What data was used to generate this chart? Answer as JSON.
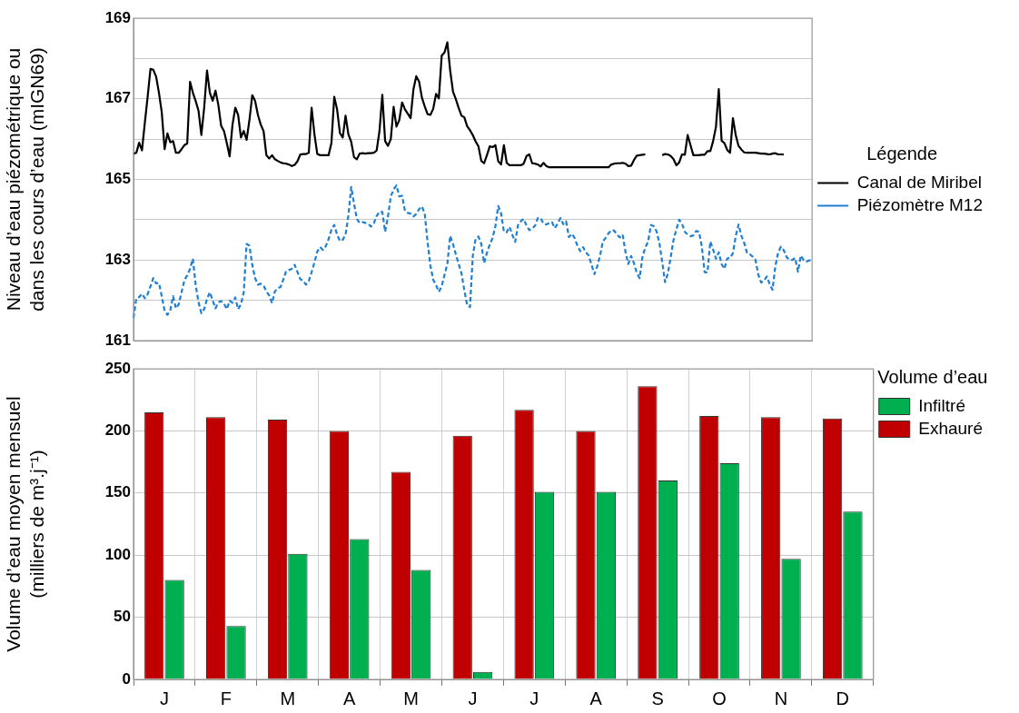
{
  "chart_data": [
    {
      "type": "line",
      "ylabel": "Niveau d’eau piézométrique ou\ndans les cours d’eau (mIGN69)",
      "legend_title": "Légende",
      "legend": "right",
      "grid": "y",
      "marker": "none",
      "tick_labels": "y",
      "categories": [
        null,
        null,
        null,
        null,
        null,
        null,
        null,
        null,
        null,
        null,
        null,
        null,
        null,
        null,
        null,
        null,
        null,
        null,
        null,
        null,
        null,
        null,
        null,
        null,
        null,
        null,
        null,
        null,
        null,
        null,
        null,
        null,
        null,
        null,
        null,
        null,
        null,
        null,
        null,
        null,
        null,
        null,
        null,
        null,
        null,
        null,
        null,
        null,
        null,
        null,
        null,
        null,
        null,
        null,
        null,
        null,
        null,
        null,
        null,
        null,
        null,
        null,
        null,
        null,
        null,
        null,
        null,
        null,
        null,
        null,
        null,
        null,
        null,
        null,
        null,
        null,
        null,
        null,
        null,
        null,
        null,
        null,
        null,
        null,
        null,
        null,
        null,
        null,
        null,
        null,
        null,
        null,
        null,
        null,
        null,
        null,
        null,
        null,
        null,
        null,
        null,
        null,
        null,
        null,
        null,
        null,
        null,
        null,
        null,
        null,
        null,
        null,
        null,
        null,
        null,
        null,
        null,
        null,
        null,
        null,
        null,
        null,
        null,
        null,
        null,
        null,
        null,
        null,
        null,
        null,
        null,
        null,
        null,
        null,
        null,
        null,
        null,
        null,
        null,
        null,
        null,
        null,
        null,
        null,
        null,
        null,
        null,
        null,
        null,
        null,
        null,
        null,
        null,
        null,
        null,
        null,
        null,
        null,
        null,
        null,
        null,
        null,
        null,
        null,
        null,
        null,
        null,
        null,
        null,
        null,
        null,
        null,
        null,
        null,
        null,
        null,
        null,
        null,
        null,
        null,
        null,
        null,
        null,
        null,
        null,
        null,
        null,
        null,
        null,
        null,
        null,
        null,
        null,
        null,
        null,
        null,
        null,
        null,
        null,
        null,
        null,
        null,
        null,
        null,
        null,
        null,
        null,
        null,
        null,
        null,
        null,
        null,
        null,
        null,
        null,
        null,
        null,
        null,
        null,
        null,
        null,
        null,
        null,
        null,
        null,
        null,
        null,
        null,
        null,
        null,
        null,
        null,
        null,
        null,
        null,
        null,
        null,
        null,
        null,
        null,
        null
      ],
      "ylim": [
        161,
        169
      ],
      "yticks": [
        161,
        {
          "value": 162,
          "label": null
        },
        163,
        {
          "value": 164,
          "label": null
        },
        165,
        {
          "value": 166,
          "label": null
        },
        167,
        {
          "value": 168,
          "label": null
        },
        169
      ],
      "series": [
        {
          "name": "Canal de Miribel",
          "color": "#000000",
          "line_style": "solid",
          "values": [
            165.64,
            165.66,
            165.91,
            165.72,
            166.4,
            167.05,
            167.74,
            167.72,
            167.55,
            167.15,
            166.66,
            165.75,
            166.14,
            165.92,
            165.95,
            165.66,
            165.66,
            165.75,
            165.85,
            165.89,
            167.42,
            167.15,
            166.94,
            166.7,
            166.1,
            166.78,
            167.7,
            167.15,
            166.95,
            167.2,
            166.85,
            166.33,
            166.2,
            165.9,
            165.57,
            166.35,
            166.78,
            166.6,
            166.04,
            166.2,
            165.98,
            166.47,
            167.09,
            166.95,
            166.6,
            166.36,
            166.2,
            165.6,
            165.52,
            165.6,
            165.5,
            165.46,
            165.42,
            165.4,
            165.39,
            165.37,
            165.33,
            165.36,
            165.45,
            165.62,
            165.63,
            165.63,
            165.66,
            166.78,
            166.12,
            165.63,
            165.6,
            165.6,
            165.6,
            165.6,
            165.9,
            167.05,
            166.74,
            166.15,
            166.04,
            166.58,
            166.12,
            165.93,
            165.55,
            165.5,
            165.64,
            165.65,
            165.64,
            165.65,
            165.65,
            165.66,
            165.72,
            166.2,
            167.1,
            165.95,
            165.83,
            166.0,
            166.8,
            166.31,
            166.47,
            166.91,
            166.74,
            166.63,
            166.52,
            167.23,
            167.56,
            167.43,
            167.03,
            166.81,
            166.62,
            166.6,
            166.75,
            167.12,
            167.01,
            168.07,
            168.15,
            168.4,
            167.7,
            167.18,
            166.99,
            166.77,
            166.58,
            166.54,
            166.32,
            166.22,
            166.1,
            165.94,
            165.82,
            165.46,
            165.4,
            165.6,
            165.82,
            165.8,
            165.85,
            165.45,
            165.37,
            165.85,
            165.41,
            165.35,
            165.35,
            165.35,
            165.35,
            165.35,
            165.39,
            165.58,
            165.62,
            165.4,
            165.39,
            165.37,
            165.32,
            165.41,
            165.33,
            165.3,
            165.3,
            165.3,
            165.3,
            165.3,
            165.3,
            165.3,
            165.3,
            165.3,
            165.3,
            165.3,
            165.3,
            165.3,
            165.3,
            165.3,
            165.3,
            165.3,
            165.3,
            165.3,
            165.3,
            165.3,
            165.3,
            165.37,
            165.39,
            165.4,
            165.4,
            165.41,
            165.39,
            165.33,
            165.34,
            165.48,
            165.59,
            165.6,
            165.61,
            165.62,
            null,
            null,
            null,
            null,
            null,
            165.6,
            165.63,
            165.62,
            165.58,
            165.5,
            165.35,
            165.42,
            165.62,
            165.61,
            166.1,
            165.85,
            165.6,
            165.6,
            165.6,
            165.61,
            165.61,
            165.7,
            165.7,
            165.95,
            166.3,
            167.24,
            165.96,
            165.9,
            165.73,
            165.66,
            166.52,
            166.1,
            165.83,
            165.74,
            165.67,
            165.66,
            165.66,
            165.66,
            165.66,
            165.65,
            165.64,
            165.64,
            165.63,
            165.62,
            165.64,
            165.65,
            165.62,
            165.62,
            165.62,
            null,
            null,
            null,
            null,
            null,
            null,
            null,
            null,
            null,
            null
          ]
        },
        {
          "name": "Piézomètre M12",
          "color": "#1e7fd3",
          "line_style": "dashed",
          "values": [
            161.56,
            162.05,
            162.08,
            162.16,
            162.05,
            162.15,
            162.35,
            162.55,
            162.42,
            162.43,
            162.1,
            161.74,
            161.64,
            161.75,
            162.1,
            161.8,
            161.9,
            162.2,
            162.5,
            162.62,
            162.78,
            163.03,
            162.37,
            161.95,
            161.68,
            161.78,
            162.03,
            162.2,
            162.0,
            161.8,
            161.95,
            161.98,
            161.92,
            161.78,
            161.99,
            161.94,
            162.07,
            161.78,
            161.9,
            162.2,
            163.4,
            163.35,
            162.88,
            162.55,
            162.39,
            162.41,
            162.37,
            162.22,
            162.12,
            161.93,
            162.22,
            162.3,
            162.33,
            162.52,
            162.73,
            162.75,
            162.78,
            162.88,
            162.7,
            162.52,
            162.49,
            162.39,
            162.48,
            162.7,
            162.94,
            163.21,
            163.32,
            163.25,
            163.34,
            163.52,
            163.75,
            163.87,
            163.63,
            163.47,
            163.5,
            163.63,
            164.1,
            164.81,
            164.4,
            164.02,
            163.92,
            163.94,
            163.92,
            163.9,
            163.83,
            163.91,
            164.09,
            164.2,
            164.19,
            163.7,
            164.08,
            164.58,
            164.75,
            164.85,
            164.58,
            164.59,
            164.22,
            164.17,
            164.15,
            164.08,
            164.14,
            164.26,
            164.33,
            164.15,
            163.45,
            162.86,
            162.51,
            162.38,
            162.21,
            162.35,
            162.63,
            162.9,
            163.6,
            163.4,
            163.14,
            162.9,
            162.67,
            162.25,
            161.88,
            161.83,
            163.1,
            163.53,
            163.58,
            163.4,
            162.92,
            163.18,
            163.38,
            163.55,
            163.84,
            164.34,
            164.16,
            163.7,
            163.69,
            163.82,
            163.62,
            163.45,
            163.87,
            163.96,
            164.02,
            163.85,
            163.74,
            163.78,
            163.85,
            164.04,
            164.04,
            163.9,
            163.88,
            163.92,
            163.94,
            163.79,
            163.9,
            164.04,
            163.89,
            163.96,
            163.57,
            163.65,
            163.55,
            163.36,
            163.22,
            163.32,
            163.19,
            163.11,
            162.88,
            162.65,
            162.84,
            163.1,
            163.46,
            163.55,
            163.66,
            163.74,
            163.73,
            163.63,
            163.56,
            163.63,
            163.2,
            162.9,
            163.1,
            162.92,
            162.68,
            162.55,
            163.07,
            163.31,
            163.45,
            163.87,
            163.84,
            163.71,
            163.42,
            162.95,
            162.45,
            162.67,
            163.07,
            163.5,
            163.76,
            164.0,
            163.9,
            163.7,
            163.63,
            163.59,
            163.61,
            163.72,
            163.7,
            163.34,
            162.7,
            162.69,
            163.46,
            163.26,
            163.03,
            163.19,
            162.9,
            162.78,
            163.04,
            163.05,
            163.17,
            163.59,
            163.88,
            163.6,
            163.42,
            163.17,
            163.14,
            163.08,
            163.0,
            162.63,
            162.44,
            162.49,
            162.59,
            162.4,
            162.26,
            162.84,
            163.19,
            163.33,
            163.24,
            163.07,
            163.0,
            163.0,
            163.05,
            162.71,
            163.11,
            163.0,
            162.96,
            162.99,
            162.99
          ]
        }
      ]
    },
    {
      "type": "bar",
      "ylabel": "Volume d’eau moyen mensuel\n(milliers de m³.j⁻¹)",
      "legend_title": "Volume d’eau",
      "legend": "top right",
      "grid": true,
      "categories": [
        "J",
        "F",
        "M",
        "A",
        "M",
        "J",
        "J",
        "A",
        "S",
        "O",
        "N",
        "D"
      ],
      "ylim": [
        0,
        250
      ],
      "yticks": [
        0,
        50,
        100,
        150,
        200,
        250
      ],
      "series": [
        {
          "name": "Exhauré",
          "color": "#c00000",
          "values": [
            215,
            211,
            209,
            200,
            167,
            196,
            217,
            200,
            236,
            212,
            211,
            210
          ]
        },
        {
          "name": "Infiltré",
          "color": "#00b050",
          "values": [
            80,
            43,
            101,
            113,
            88,
            6,
            151,
            151,
            160,
            174,
            97,
            135
          ]
        }
      ]
    }
  ]
}
